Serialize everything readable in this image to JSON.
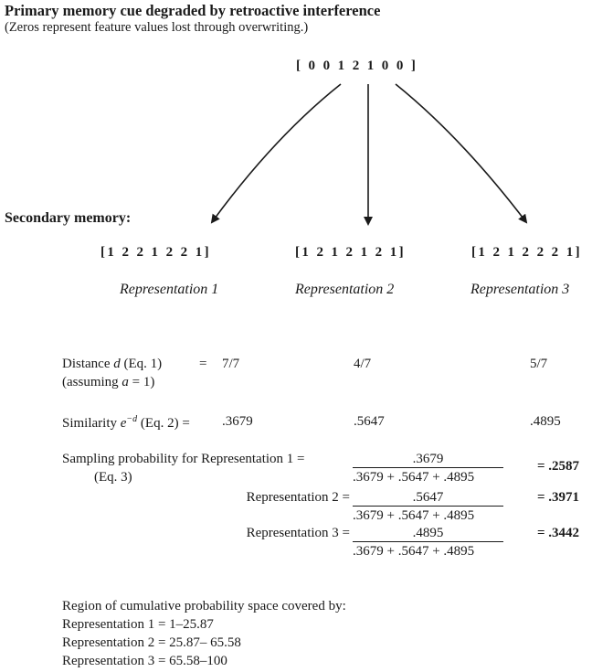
{
  "title": "Primary memory cue degraded by retroactive interference",
  "subtitle": "(Zeros represent feature values lost through overwriting.)",
  "cue_vector": "[ 0 0 1 2 1 0 0 ]",
  "secondary_label": "Secondary memory:",
  "representations": [
    {
      "vector": "[1 2 2 1 2 2 1]",
      "label": "Representation 1"
    },
    {
      "vector": "[1 2 1 2 1 2 1]",
      "label": "Representation 2"
    },
    {
      "vector": "[1 2 1 2 2 2 1]",
      "label": "Representation 3"
    }
  ],
  "distance": {
    "label_pre": "Distance ",
    "label_var": "d",
    "label_post": " (Eq. 1)",
    "eq": "=",
    "note_pre": "(assuming ",
    "note_var": "a",
    "note_post": " = 1)",
    "values": [
      "7/7",
      "4/7",
      "5/7"
    ]
  },
  "similarity": {
    "label_pre": "Similarity ",
    "base": "e",
    "exponent": "−d",
    "label_post": " (Eq. 2)",
    "eq": "=",
    "values": [
      ".3679",
      ".5647",
      ".4895"
    ]
  },
  "sampling": {
    "label": "Sampling probability for Representation 1 =",
    "eq_label": "(Eq. 3)",
    "rows": [
      {
        "label": "",
        "numerator": ".3679",
        "denominator": ".3679 + .5647 + .4895",
        "result": "= .2587"
      },
      {
        "label": "Representation 2 =",
        "numerator": ".5647",
        "denominator": ".3679 + .5647 + .4895",
        "result": "= .3971"
      },
      {
        "label": "Representation 3 =",
        "numerator": ".4895",
        "denominator": ".3679 + .5647 + .4895",
        "result": "= .3442"
      }
    ]
  },
  "region": {
    "heading": "Region of cumulative probability space covered by:",
    "lines": [
      "Representation 1 = 1–25.87",
      "Representation 2 = 25.87– 65.58",
      "Representation 3 = 65.58–100"
    ]
  }
}
